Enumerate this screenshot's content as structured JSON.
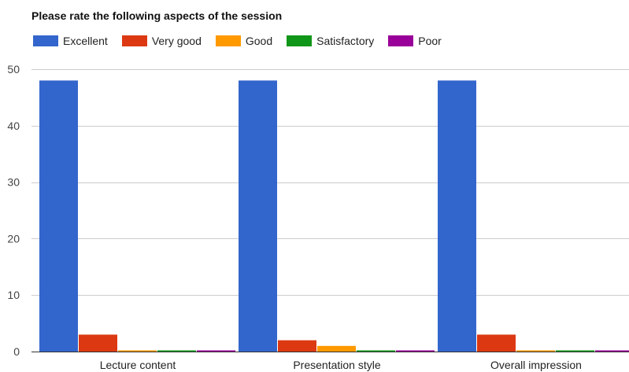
{
  "chart_data": {
    "type": "bar",
    "title": "Please rate the following aspects of the session",
    "categories": [
      "Lecture content",
      "Presentation style",
      "Overall impression"
    ],
    "series": [
      {
        "name": "Excellent",
        "color": "#3366cc",
        "values": [
          48,
          48,
          48
        ]
      },
      {
        "name": "Very good",
        "color": "#dc3912",
        "values": [
          3,
          2,
          3
        ]
      },
      {
        "name": "Good",
        "color": "#ff9900",
        "values": [
          0,
          1,
          0
        ]
      },
      {
        "name": "Satisfactory",
        "color": "#109618",
        "values": [
          0,
          0,
          0
        ]
      },
      {
        "name": "Poor",
        "color": "#990099",
        "values": [
          0,
          0,
          0
        ]
      }
    ],
    "ylim": [
      0,
      50
    ],
    "yticks": [
      0,
      10,
      20,
      30,
      40,
      50
    ],
    "grid": true,
    "legend_position": "top-left",
    "xlabel": "",
    "ylabel": ""
  }
}
